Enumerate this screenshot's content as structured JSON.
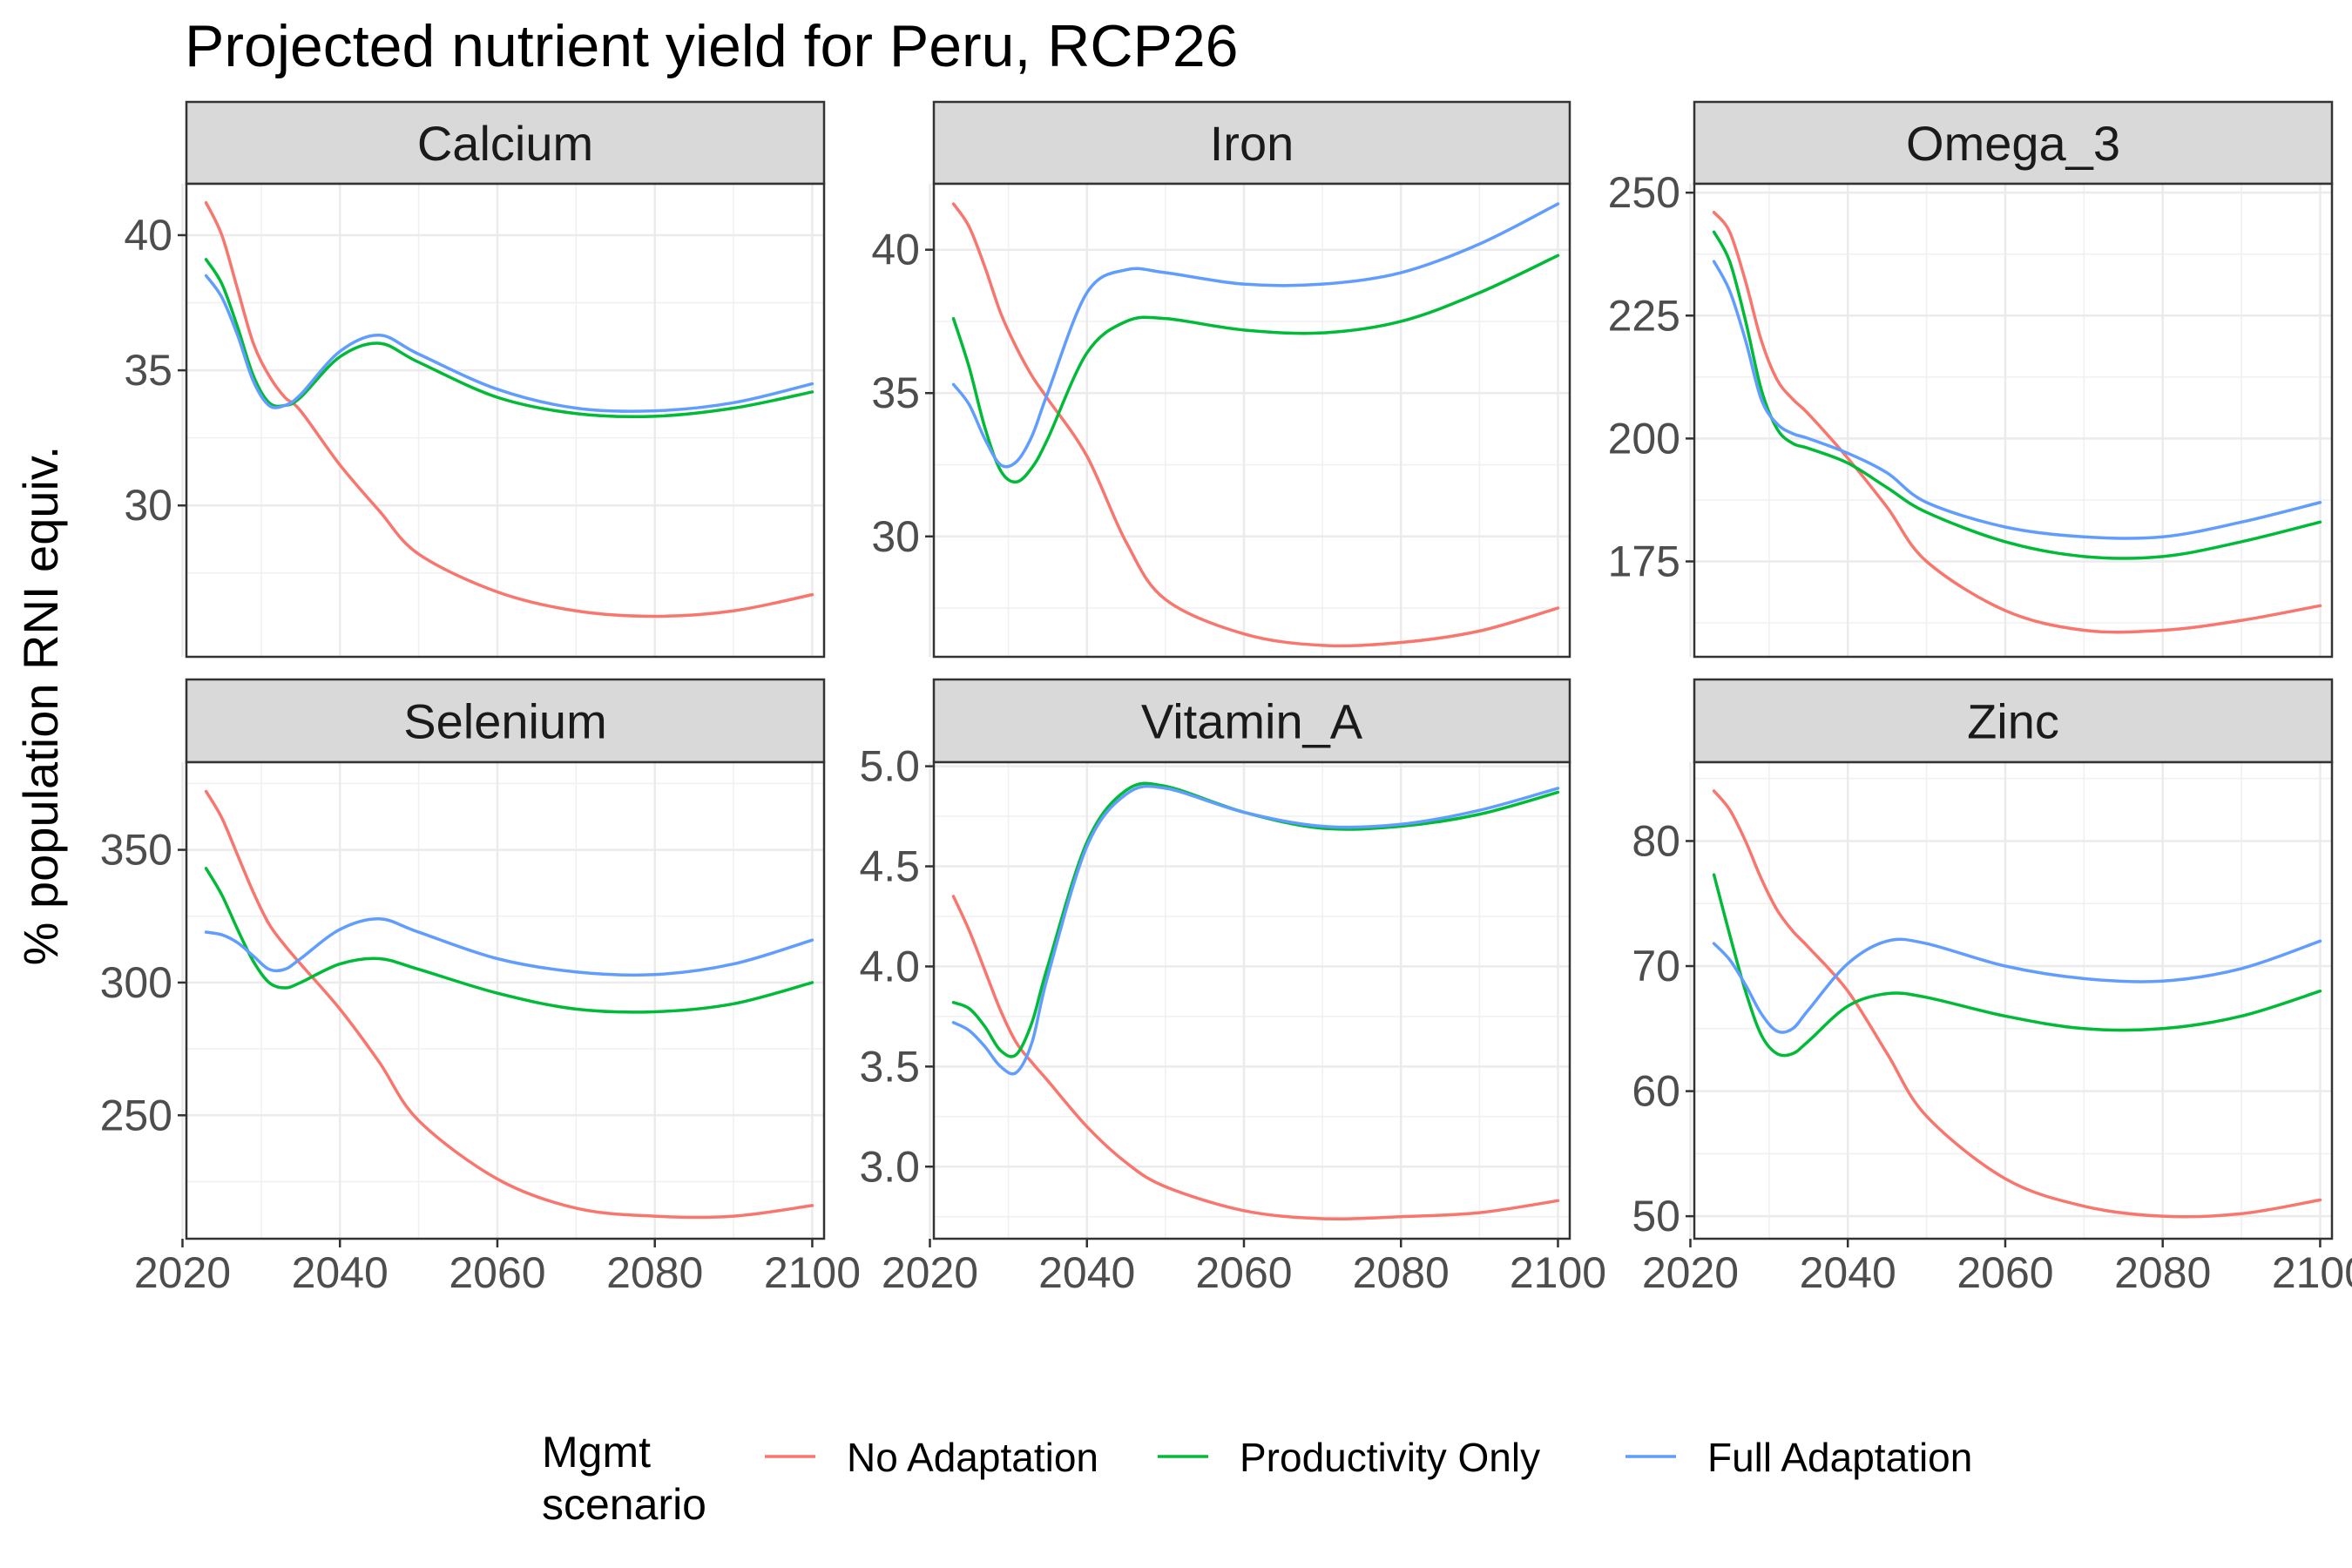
{
  "chart_data": {
    "type": "line",
    "title": "Projected nutrient yield for Peru, RCP26",
    "ylabel": "% population RNI equiv.",
    "xlabel": "",
    "grid": true,
    "legend": {
      "title_lines": [
        "Mgmt",
        "scenario"
      ],
      "placement": "bottom",
      "entries": [
        "No Adaptation",
        "Productivity Only",
        "Full Adaptation"
      ]
    },
    "colors": {
      "No Adaptation": "#F8766D",
      "Productivity Only": "#00BA38",
      "Full Adaptation": "#619CFF"
    },
    "x": [
      2023,
      2025,
      2027,
      2029,
      2031,
      2033,
      2035,
      2040,
      2045,
      2050,
      2060,
      2070,
      2080,
      2090,
      2100
    ],
    "xlim": [
      2020.5,
      2101.5
    ],
    "xticks": [
      2020,
      2040,
      2060,
      2080,
      2100
    ],
    "panels": [
      {
        "name": "Calcium",
        "ylim": [
          24.4,
          41.9
        ],
        "yticks": [
          30,
          35,
          40
        ],
        "series": [
          {
            "name": "No Adaptation",
            "values": [
              41.2,
              40.0,
              38.0,
              36.0,
              34.8,
              34.0,
              33.5,
              31.5,
              29.8,
              28.2,
              26.8,
              26.1,
              25.9,
              26.1,
              26.7
            ]
          },
          {
            "name": "Productivity Only",
            "values": [
              39.1,
              38.2,
              36.6,
              34.8,
              33.8,
              33.7,
              34.0,
              35.5,
              36.0,
              35.3,
              34.0,
              33.4,
              33.3,
              33.6,
              34.2
            ]
          },
          {
            "name": "Full Adaptation",
            "values": [
              38.5,
              37.7,
              36.3,
              34.6,
              33.7,
              33.7,
              34.1,
              35.7,
              36.3,
              35.6,
              34.3,
              33.6,
              33.5,
              33.8,
              34.5
            ]
          }
        ]
      },
      {
        "name": "Iron",
        "ylim": [
          25.8,
          42.3
        ],
        "yticks": [
          30,
          35,
          40
        ],
        "series": [
          {
            "name": "No Adaptation",
            "values": [
              41.6,
              40.8,
              39.4,
              37.8,
              36.6,
              35.6,
              34.8,
              32.8,
              29.8,
              27.8,
              26.6,
              26.2,
              26.3,
              26.7,
              27.5
            ]
          },
          {
            "name": "Productivity Only",
            "values": [
              37.6,
              35.9,
              33.8,
              32.3,
              31.9,
              32.4,
              33.4,
              36.4,
              37.5,
              37.6,
              37.2,
              37.1,
              37.5,
              38.5,
              39.8
            ]
          },
          {
            "name": "Full Adaptation",
            "values": [
              35.3,
              34.6,
              33.4,
              32.5,
              32.6,
              33.5,
              35.0,
              38.5,
              39.3,
              39.2,
              38.8,
              38.8,
              39.2,
              40.2,
              41.6
            ]
          }
        ]
      },
      {
        "name": "Omega_3",
        "ylim": [
          155.6,
          251.8
        ],
        "yticks": [
          175,
          200,
          225,
          250
        ],
        "series": [
          {
            "name": "No Adaptation",
            "values": [
              246,
              242,
              232,
              220,
              212,
              208,
              205,
              196,
              186,
              175,
              165,
              161,
              161,
              163,
              166
            ]
          },
          {
            "name": "Productivity Only",
            "values": [
              242,
              236,
              224,
              210,
              202,
              199,
              198,
              195,
              190,
              185,
              179,
              176,
              176,
              179,
              183
            ]
          },
          {
            "name": "Full Adaptation",
            "values": [
              236,
              230,
              220,
              208,
              203,
              201,
              200,
              197,
              193,
              187,
              182,
              180,
              180,
              183,
              187
            ]
          }
        ]
      },
      {
        "name": "Selenium",
        "ylim": [
          203.5,
          383.0
        ],
        "yticks": [
          250,
          300,
          350
        ],
        "series": [
          {
            "name": "No Adaptation",
            "values": [
              372,
              362,
              348,
              334,
              322,
              314,
              307,
              290,
              270,
              248,
              226,
              215,
              212,
              212,
              216
            ]
          },
          {
            "name": "Productivity Only",
            "values": [
              343,
              333,
              320,
              308,
              300,
              298,
              300,
              307,
              309,
              305,
              296,
              290,
              289,
              292,
              300
            ]
          },
          {
            "name": "Full Adaptation",
            "values": [
              319,
              318,
              315,
              310,
              305,
              305,
              309,
              320,
              324,
              319,
              309,
              304,
              303,
              307,
              316
            ]
          }
        ]
      },
      {
        "name": "Vitamin_A",
        "ylim": [
          2.64,
          5.02
        ],
        "yticks": [
          3.0,
          3.5,
          4.0,
          4.5,
          5.0
        ],
        "series": [
          {
            "name": "No Adaptation",
            "values": [
              4.35,
              4.18,
              3.98,
              3.78,
              3.62,
              3.52,
              3.43,
              3.2,
              3.02,
              2.9,
              2.78,
              2.74,
              2.75,
              2.77,
              2.83
            ]
          },
          {
            "name": "Productivity Only",
            "values": [
              3.82,
              3.79,
              3.7,
              3.58,
              3.56,
              3.72,
              4.0,
              4.62,
              4.88,
              4.9,
              4.77,
              4.69,
              4.7,
              4.76,
              4.87
            ]
          },
          {
            "name": "Full Adaptation",
            "values": [
              3.72,
              3.68,
              3.6,
              3.5,
              3.47,
              3.62,
              3.95,
              4.6,
              4.86,
              4.89,
              4.77,
              4.7,
              4.71,
              4.78,
              4.89
            ]
          }
        ]
      },
      {
        "name": "Zinc",
        "ylim": [
          48.2,
          86.3
        ],
        "yticks": [
          50,
          60,
          70,
          80
        ],
        "series": [
          {
            "name": "No Adaptation",
            "values": [
              84.0,
              82.5,
              80.0,
              77.0,
              74.5,
              72.8,
              71.5,
              68.0,
              63.0,
              58.0,
              53.0,
              50.8,
              50.0,
              50.2,
              51.3
            ]
          },
          {
            "name": "Productivity Only",
            "values": [
              77.3,
              72.5,
              68.0,
              64.5,
              63.0,
              63.0,
              64.0,
              66.8,
              67.8,
              67.5,
              66.0,
              65.0,
              65.0,
              66.0,
              68.0
            ]
          },
          {
            "name": "Full Adaptation",
            "values": [
              71.8,
              70.5,
              68.5,
              66.2,
              64.8,
              65.0,
              66.5,
              70.2,
              72.0,
              71.8,
              70.0,
              69.0,
              68.8,
              69.8,
              72.0
            ]
          }
        ]
      }
    ]
  }
}
